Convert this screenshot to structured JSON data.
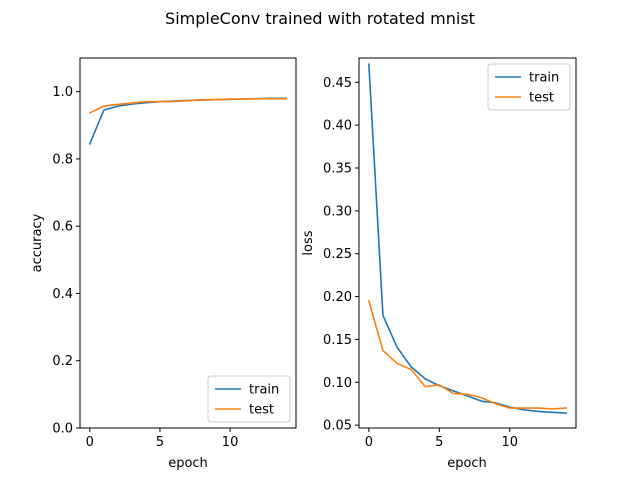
{
  "figure": {
    "suptitle": "SimpleConv trained with rotated mnist"
  },
  "colors": {
    "train": "#1f77b4",
    "test": "#ff7f0e"
  },
  "chart_data": [
    {
      "type": "line",
      "xlabel": "epoch",
      "ylabel": "accuracy",
      "xlim": [
        -0.7,
        14.7
      ],
      "ylim": [
        0.0,
        1.1
      ],
      "xticks": [
        0,
        5,
        10
      ],
      "xtick_labels": [
        "0",
        "5",
        "10"
      ],
      "yticks": [
        0.0,
        0.2,
        0.4,
        0.6,
        0.8,
        1.0
      ],
      "ytick_labels": [
        "0.0",
        "0.2",
        "0.4",
        "0.6",
        "0.8",
        "1.0"
      ],
      "grid": false,
      "legend": {
        "position": "bottom-right",
        "entries": [
          "train",
          "test"
        ]
      },
      "x": [
        0,
        1,
        2,
        3,
        4,
        5,
        6,
        7,
        8,
        9,
        10,
        11,
        12,
        13,
        14
      ],
      "series": [
        {
          "name": "train",
          "color_key": "train",
          "values": [
            0.845,
            0.945,
            0.957,
            0.963,
            0.967,
            0.97,
            0.972,
            0.974,
            0.975,
            0.976,
            0.977,
            0.978,
            0.979,
            0.98,
            0.98
          ]
        },
        {
          "name": "test",
          "color_key": "test",
          "values": [
            0.937,
            0.957,
            0.962,
            0.966,
            0.97,
            0.97,
            0.971,
            0.973,
            0.976,
            0.976,
            0.978,
            0.978,
            0.979,
            0.979,
            0.979
          ]
        }
      ]
    },
    {
      "type": "line",
      "xlabel": "epoch",
      "ylabel": "loss",
      "xlim": [
        -0.7,
        14.7
      ],
      "ylim": [
        0.0467,
        0.4783
      ],
      "xticks": [
        0,
        5,
        10
      ],
      "xtick_labels": [
        "0",
        "5",
        "10"
      ],
      "yticks": [
        0.05,
        0.1,
        0.15,
        0.2,
        0.25,
        0.3,
        0.35,
        0.4,
        0.45
      ],
      "ytick_labels": [
        "0.05",
        "0.10",
        "0.15",
        "0.20",
        "0.25",
        "0.30",
        "0.35",
        "0.40",
        "0.45"
      ],
      "grid": false,
      "legend": {
        "position": "top-right",
        "entries": [
          "train",
          "test"
        ]
      },
      "x": [
        0,
        1,
        2,
        3,
        4,
        5,
        6,
        7,
        8,
        9,
        10,
        11,
        12,
        13,
        14
      ],
      "series": [
        {
          "name": "train",
          "color_key": "train",
          "values": [
            0.471,
            0.178,
            0.141,
            0.118,
            0.104,
            0.096,
            0.09,
            0.084,
            0.078,
            0.076,
            0.071,
            0.068,
            0.066,
            0.065,
            0.064
          ]
        },
        {
          "name": "test",
          "color_key": "test",
          "values": [
            0.195,
            0.137,
            0.122,
            0.115,
            0.095,
            0.097,
            0.087,
            0.086,
            0.082,
            0.075,
            0.07,
            0.07,
            0.07,
            0.069,
            0.07
          ]
        }
      ]
    }
  ]
}
